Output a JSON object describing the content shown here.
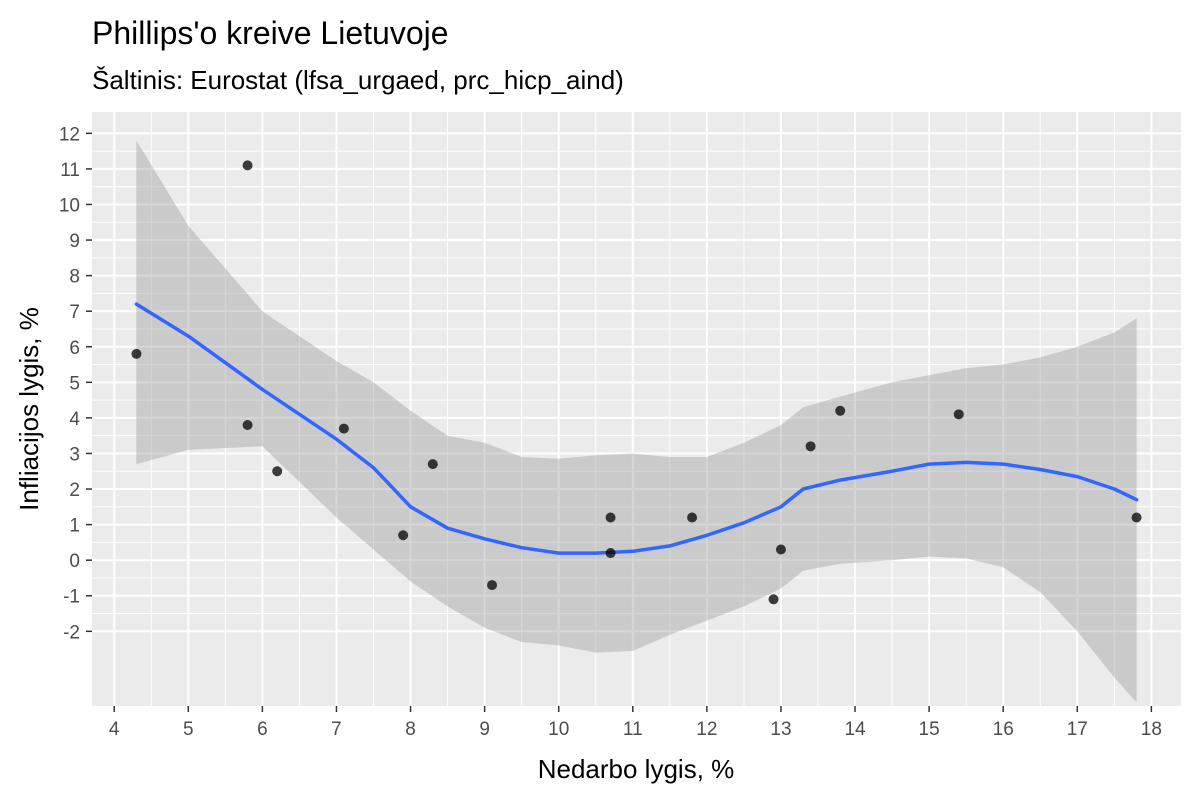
{
  "chart_data": {
    "type": "scatter",
    "title": "Phillips'o kreive Lietuvoje",
    "subtitle": "Šaltinis: Eurostat (lfsa_urgaed, prc_hicp_aind)",
    "xlabel": "Nedarbo lygis, %",
    "ylabel": "Infliacijos lygis, %",
    "xlim": [
      3.7,
      18.4
    ],
    "ylim": [
      -4.1,
      12.6
    ],
    "x_ticks": [
      4,
      5,
      6,
      7,
      8,
      9,
      10,
      11,
      12,
      13,
      14,
      15,
      16,
      17,
      18
    ],
    "y_ticks": [
      -2,
      -1,
      0,
      1,
      2,
      3,
      4,
      5,
      6,
      7,
      8,
      9,
      10,
      11,
      12
    ],
    "grid": true,
    "points": [
      {
        "x": 4.3,
        "y": 5.8
      },
      {
        "x": 5.8,
        "y": 11.1
      },
      {
        "x": 5.8,
        "y": 3.8
      },
      {
        "x": 6.2,
        "y": 2.5
      },
      {
        "x": 7.1,
        "y": 3.7
      },
      {
        "x": 7.9,
        "y": 0.7
      },
      {
        "x": 8.3,
        "y": 2.7
      },
      {
        "x": 9.1,
        "y": -0.7
      },
      {
        "x": 10.7,
        "y": 1.2
      },
      {
        "x": 10.7,
        "y": 0.2
      },
      {
        "x": 11.8,
        "y": 1.2
      },
      {
        "x": 12.9,
        "y": -1.1
      },
      {
        "x": 13.0,
        "y": 0.3
      },
      {
        "x": 13.4,
        "y": 3.2
      },
      {
        "x": 13.8,
        "y": 4.2
      },
      {
        "x": 15.4,
        "y": 4.1
      },
      {
        "x": 17.8,
        "y": 1.2
      }
    ],
    "smooth": {
      "method": "loess",
      "x": [
        4.3,
        5.0,
        6.0,
        7.0,
        7.5,
        8.0,
        8.5,
        9.0,
        9.5,
        10.0,
        10.5,
        11.0,
        11.5,
        12.0,
        12.5,
        13.0,
        13.3,
        13.8,
        14.5,
        15.0,
        15.5,
        16.0,
        16.5,
        17.0,
        17.5,
        17.8
      ],
      "y": [
        7.2,
        6.3,
        4.8,
        3.4,
        2.6,
        1.5,
        0.9,
        0.6,
        0.35,
        0.2,
        0.2,
        0.25,
        0.4,
        0.7,
        1.05,
        1.5,
        2.0,
        2.25,
        2.5,
        2.7,
        2.75,
        2.7,
        2.55,
        2.35,
        2.0,
        1.7
      ],
      "lower": [
        2.7,
        3.1,
        3.2,
        1.2,
        0.3,
        -0.6,
        -1.3,
        -1.9,
        -2.3,
        -2.4,
        -2.6,
        -2.55,
        -2.1,
        -1.7,
        -1.3,
        -0.8,
        -0.3,
        -0.1,
        0.0,
        0.1,
        0.05,
        -0.2,
        -0.9,
        -2.0,
        -3.3,
        -4.0
      ],
      "upper": [
        11.8,
        9.4,
        7.0,
        5.6,
        5.0,
        4.2,
        3.5,
        3.3,
        2.9,
        2.85,
        2.95,
        3.0,
        2.9,
        2.9,
        3.3,
        3.8,
        4.3,
        4.6,
        5.0,
        5.2,
        5.4,
        5.5,
        5.7,
        6.0,
        6.4,
        6.8
      ]
    },
    "colors": {
      "panel_bg": "#ebebeb",
      "grid_major": "#ffffff",
      "point": "#000000",
      "line": "#3366ff",
      "ribbon": "#999999"
    }
  }
}
